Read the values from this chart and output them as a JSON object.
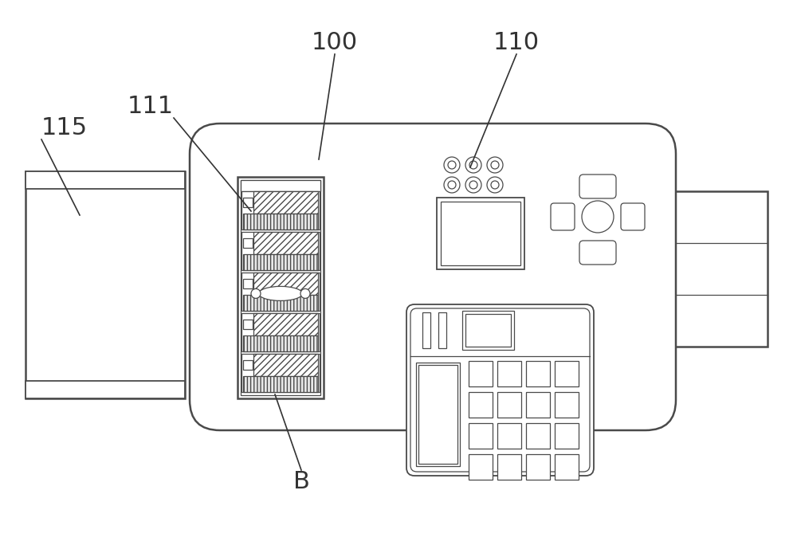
{
  "bg_color": "#ffffff",
  "line_color": "#4a4a4a",
  "fig_width": 10.0,
  "fig_height": 6.94,
  "dpi": 100
}
